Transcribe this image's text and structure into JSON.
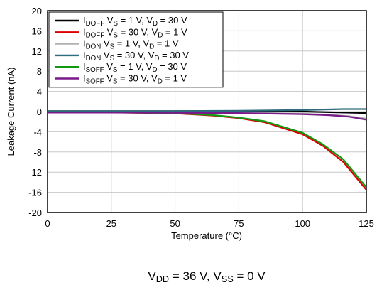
{
  "chart_data": {
    "type": "line",
    "xlabel": "Temperature (°C)",
    "ylabel": "Leakage Current (nA)",
    "subtitle": {
      "parts": [
        {
          "t": "V",
          "sub": false
        },
        {
          "t": "DD",
          "sub": true
        },
        {
          "t": " = 36 V, V",
          "sub": false
        },
        {
          "t": "SS",
          "sub": true
        },
        {
          "t": " = 0 V",
          "sub": false
        }
      ]
    },
    "xlim": [
      0,
      125
    ],
    "ylim": [
      -20,
      20
    ],
    "xticks": [
      0,
      25,
      50,
      75,
      100,
      125
    ],
    "yticks": [
      -20,
      -16,
      -12,
      -8,
      -4,
      0,
      4,
      8,
      12,
      16,
      20
    ],
    "grid": true,
    "legend_position": "top-left",
    "series": [
      {
        "name": "IDOFF VS = 1 V, VD = 30 V",
        "label_parts": [
          {
            "t": "I",
            "sub": false
          },
          {
            "t": "DOFF",
            "sub": true
          },
          {
            "t": " V",
            "sub": false
          },
          {
            "t": "S",
            "sub": true
          },
          {
            "t": " = 1 V, V",
            "sub": false
          },
          {
            "t": "D",
            "sub": true
          },
          {
            "t": " = 30 V",
            "sub": false
          }
        ],
        "color": "#000000",
        "x": [
          -40,
          25,
          50,
          75,
          100,
          125
        ],
        "y": [
          0.1,
          0.1,
          0.1,
          0.05,
          0.0,
          -0.3
        ]
      },
      {
        "name": "IDOFF VS = 30 V, VD = 1 V",
        "label_parts": [
          {
            "t": "I",
            "sub": false
          },
          {
            "t": "DOFF",
            "sub": true
          },
          {
            "t": " V",
            "sub": false
          },
          {
            "t": "S",
            "sub": true
          },
          {
            "t": " = 30 V, V",
            "sub": false
          },
          {
            "t": "D",
            "sub": true
          },
          {
            "t": " = 1 V",
            "sub": false
          }
        ],
        "color": "#dd0000",
        "x": [
          -40,
          25,
          50,
          65,
          75,
          85,
          100,
          108,
          116,
          125
        ],
        "y": [
          -0.1,
          -0.15,
          -0.35,
          -0.8,
          -1.3,
          -2.1,
          -4.5,
          -6.8,
          -10.0,
          -15.5
        ]
      },
      {
        "name": "IDON VS = 1 V, VD = 1 V",
        "label_parts": [
          {
            "t": "I",
            "sub": false
          },
          {
            "t": "DON",
            "sub": true
          },
          {
            "t": " V",
            "sub": false
          },
          {
            "t": "S",
            "sub": true
          },
          {
            "t": " = 1 V, V",
            "sub": false
          },
          {
            "t": "D",
            "sub": true
          },
          {
            "t": " = 1 V",
            "sub": false
          }
        ],
        "color": "#b0b0b0",
        "x": [
          -40,
          25,
          50,
          75,
          100,
          110,
          118,
          125
        ],
        "y": [
          -0.1,
          -0.1,
          -0.15,
          -0.2,
          -0.4,
          -0.6,
          -0.9,
          -1.4
        ]
      },
      {
        "name": "IDON VS = 30 V, VD = 30 V",
        "label_parts": [
          {
            "t": "I",
            "sub": false
          },
          {
            "t": "DON",
            "sub": true
          },
          {
            "t": " V",
            "sub": false
          },
          {
            "t": "S",
            "sub": true
          },
          {
            "t": " = 30 V, V",
            "sub": false
          },
          {
            "t": "D",
            "sub": true
          },
          {
            "t": " = 30 V",
            "sub": false
          }
        ],
        "color": "#2e6b7e",
        "x": [
          -40,
          25,
          50,
          75,
          100,
          116,
          125
        ],
        "y": [
          0.1,
          0.1,
          0.1,
          0.15,
          0.3,
          0.5,
          0.5
        ]
      },
      {
        "name": "ISOFF VS = 1 V, VD = 30 V",
        "label_parts": [
          {
            "t": "I",
            "sub": false
          },
          {
            "t": "SOFF",
            "sub": true
          },
          {
            "t": " V",
            "sub": false
          },
          {
            "t": "S",
            "sub": true
          },
          {
            "t": " = 1 V, V",
            "sub": false
          },
          {
            "t": "D",
            "sub": true
          },
          {
            "t": " = 30 V",
            "sub": false
          }
        ],
        "color": "#119911",
        "x": [
          -40,
          25,
          50,
          65,
          75,
          85,
          100,
          108,
          116,
          125
        ],
        "y": [
          -0.1,
          -0.15,
          -0.3,
          -0.7,
          -1.2,
          -1.9,
          -4.2,
          -6.5,
          -9.5,
          -15.0
        ]
      },
      {
        "name": "ISOFF VS = 30 V, VD = 1 V",
        "label_parts": [
          {
            "t": "I",
            "sub": false
          },
          {
            "t": "SOFF",
            "sub": true
          },
          {
            "t": " V",
            "sub": false
          },
          {
            "t": "S",
            "sub": true
          },
          {
            "t": " = 30 V, V",
            "sub": false
          },
          {
            "t": "D",
            "sub": true
          },
          {
            "t": " = 1 V",
            "sub": false
          }
        ],
        "color": "#7a1a8a",
        "x": [
          -40,
          25,
          50,
          75,
          100,
          110,
          118,
          125
        ],
        "y": [
          -0.2,
          -0.2,
          -0.25,
          -0.3,
          -0.5,
          -0.7,
          -1.0,
          -1.6
        ]
      }
    ]
  }
}
